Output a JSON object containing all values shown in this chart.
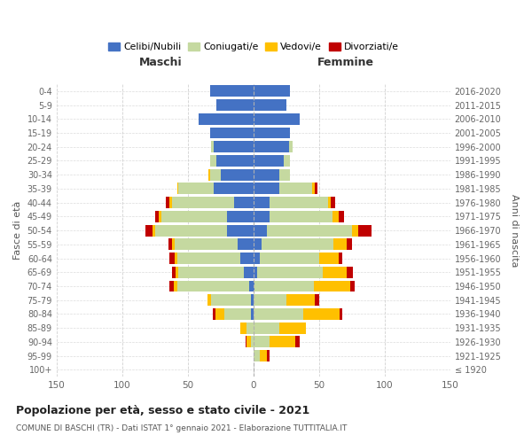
{
  "age_groups": [
    "100+",
    "95-99",
    "90-94",
    "85-89",
    "80-84",
    "75-79",
    "70-74",
    "65-69",
    "60-64",
    "55-59",
    "50-54",
    "45-49",
    "40-44",
    "35-39",
    "30-34",
    "25-29",
    "20-24",
    "15-19",
    "10-14",
    "5-9",
    "0-4"
  ],
  "birth_years": [
    "≤ 1920",
    "1921-1925",
    "1926-1930",
    "1931-1935",
    "1936-1940",
    "1941-1945",
    "1946-1950",
    "1951-1955",
    "1956-1960",
    "1961-1965",
    "1966-1970",
    "1971-1975",
    "1976-1980",
    "1981-1985",
    "1986-1990",
    "1991-1995",
    "1996-2000",
    "2001-2005",
    "2006-2010",
    "2011-2015",
    "2016-2020"
  ],
  "colors": {
    "celibe": "#4472C4",
    "coniugato": "#c5d9a0",
    "vedovo": "#ffc000",
    "divorziato": "#c00000"
  },
  "maschi": {
    "celibe": [
      0,
      0,
      0,
      0,
      2,
      2,
      3,
      7,
      10,
      12,
      20,
      20,
      15,
      30,
      25,
      28,
      30,
      33,
      42,
      28,
      33
    ],
    "coniugato": [
      0,
      0,
      2,
      5,
      20,
      30,
      55,
      50,
      48,
      48,
      55,
      50,
      47,
      27,
      8,
      5,
      2,
      0,
      0,
      0,
      0
    ],
    "vedovo": [
      0,
      0,
      3,
      5,
      7,
      3,
      3,
      2,
      2,
      2,
      2,
      2,
      2,
      1,
      1,
      0,
      0,
      0,
      0,
      0,
      0
    ],
    "divorziato": [
      0,
      0,
      1,
      0,
      2,
      0,
      3,
      3,
      4,
      3,
      5,
      3,
      3,
      0,
      0,
      0,
      0,
      0,
      0,
      0,
      0
    ]
  },
  "femmine": {
    "nubile": [
      0,
      0,
      0,
      0,
      0,
      0,
      1,
      3,
      5,
      6,
      10,
      12,
      12,
      20,
      20,
      23,
      27,
      28,
      35,
      25,
      28
    ],
    "coniugata": [
      0,
      5,
      12,
      20,
      38,
      25,
      45,
      50,
      45,
      55,
      65,
      48,
      45,
      25,
      8,
      5,
      3,
      0,
      0,
      0,
      0
    ],
    "vedova": [
      0,
      5,
      20,
      20,
      28,
      22,
      28,
      18,
      15,
      10,
      5,
      5,
      2,
      2,
      0,
      0,
      0,
      0,
      0,
      0,
      0
    ],
    "divorziata": [
      0,
      2,
      3,
      0,
      2,
      3,
      3,
      5,
      3,
      4,
      10,
      4,
      3,
      2,
      0,
      0,
      0,
      0,
      0,
      0,
      0
    ]
  },
  "xlim": 150,
  "title": "Popolazione per età, sesso e stato civile - 2021",
  "subtitle": "COMUNE DI BASCHI (TR) - Dati ISTAT 1° gennaio 2021 - Elaborazione TUTTITALIA.IT",
  "xlabel_left": "Maschi",
  "xlabel_right": "Femmine",
  "ylabel_left": "Fasce di età",
  "ylabel_right": "Anni di nascita",
  "legend_labels": [
    "Celibi/Nubili",
    "Coniugati/e",
    "Vedovi/e",
    "Divorziati/e"
  ]
}
